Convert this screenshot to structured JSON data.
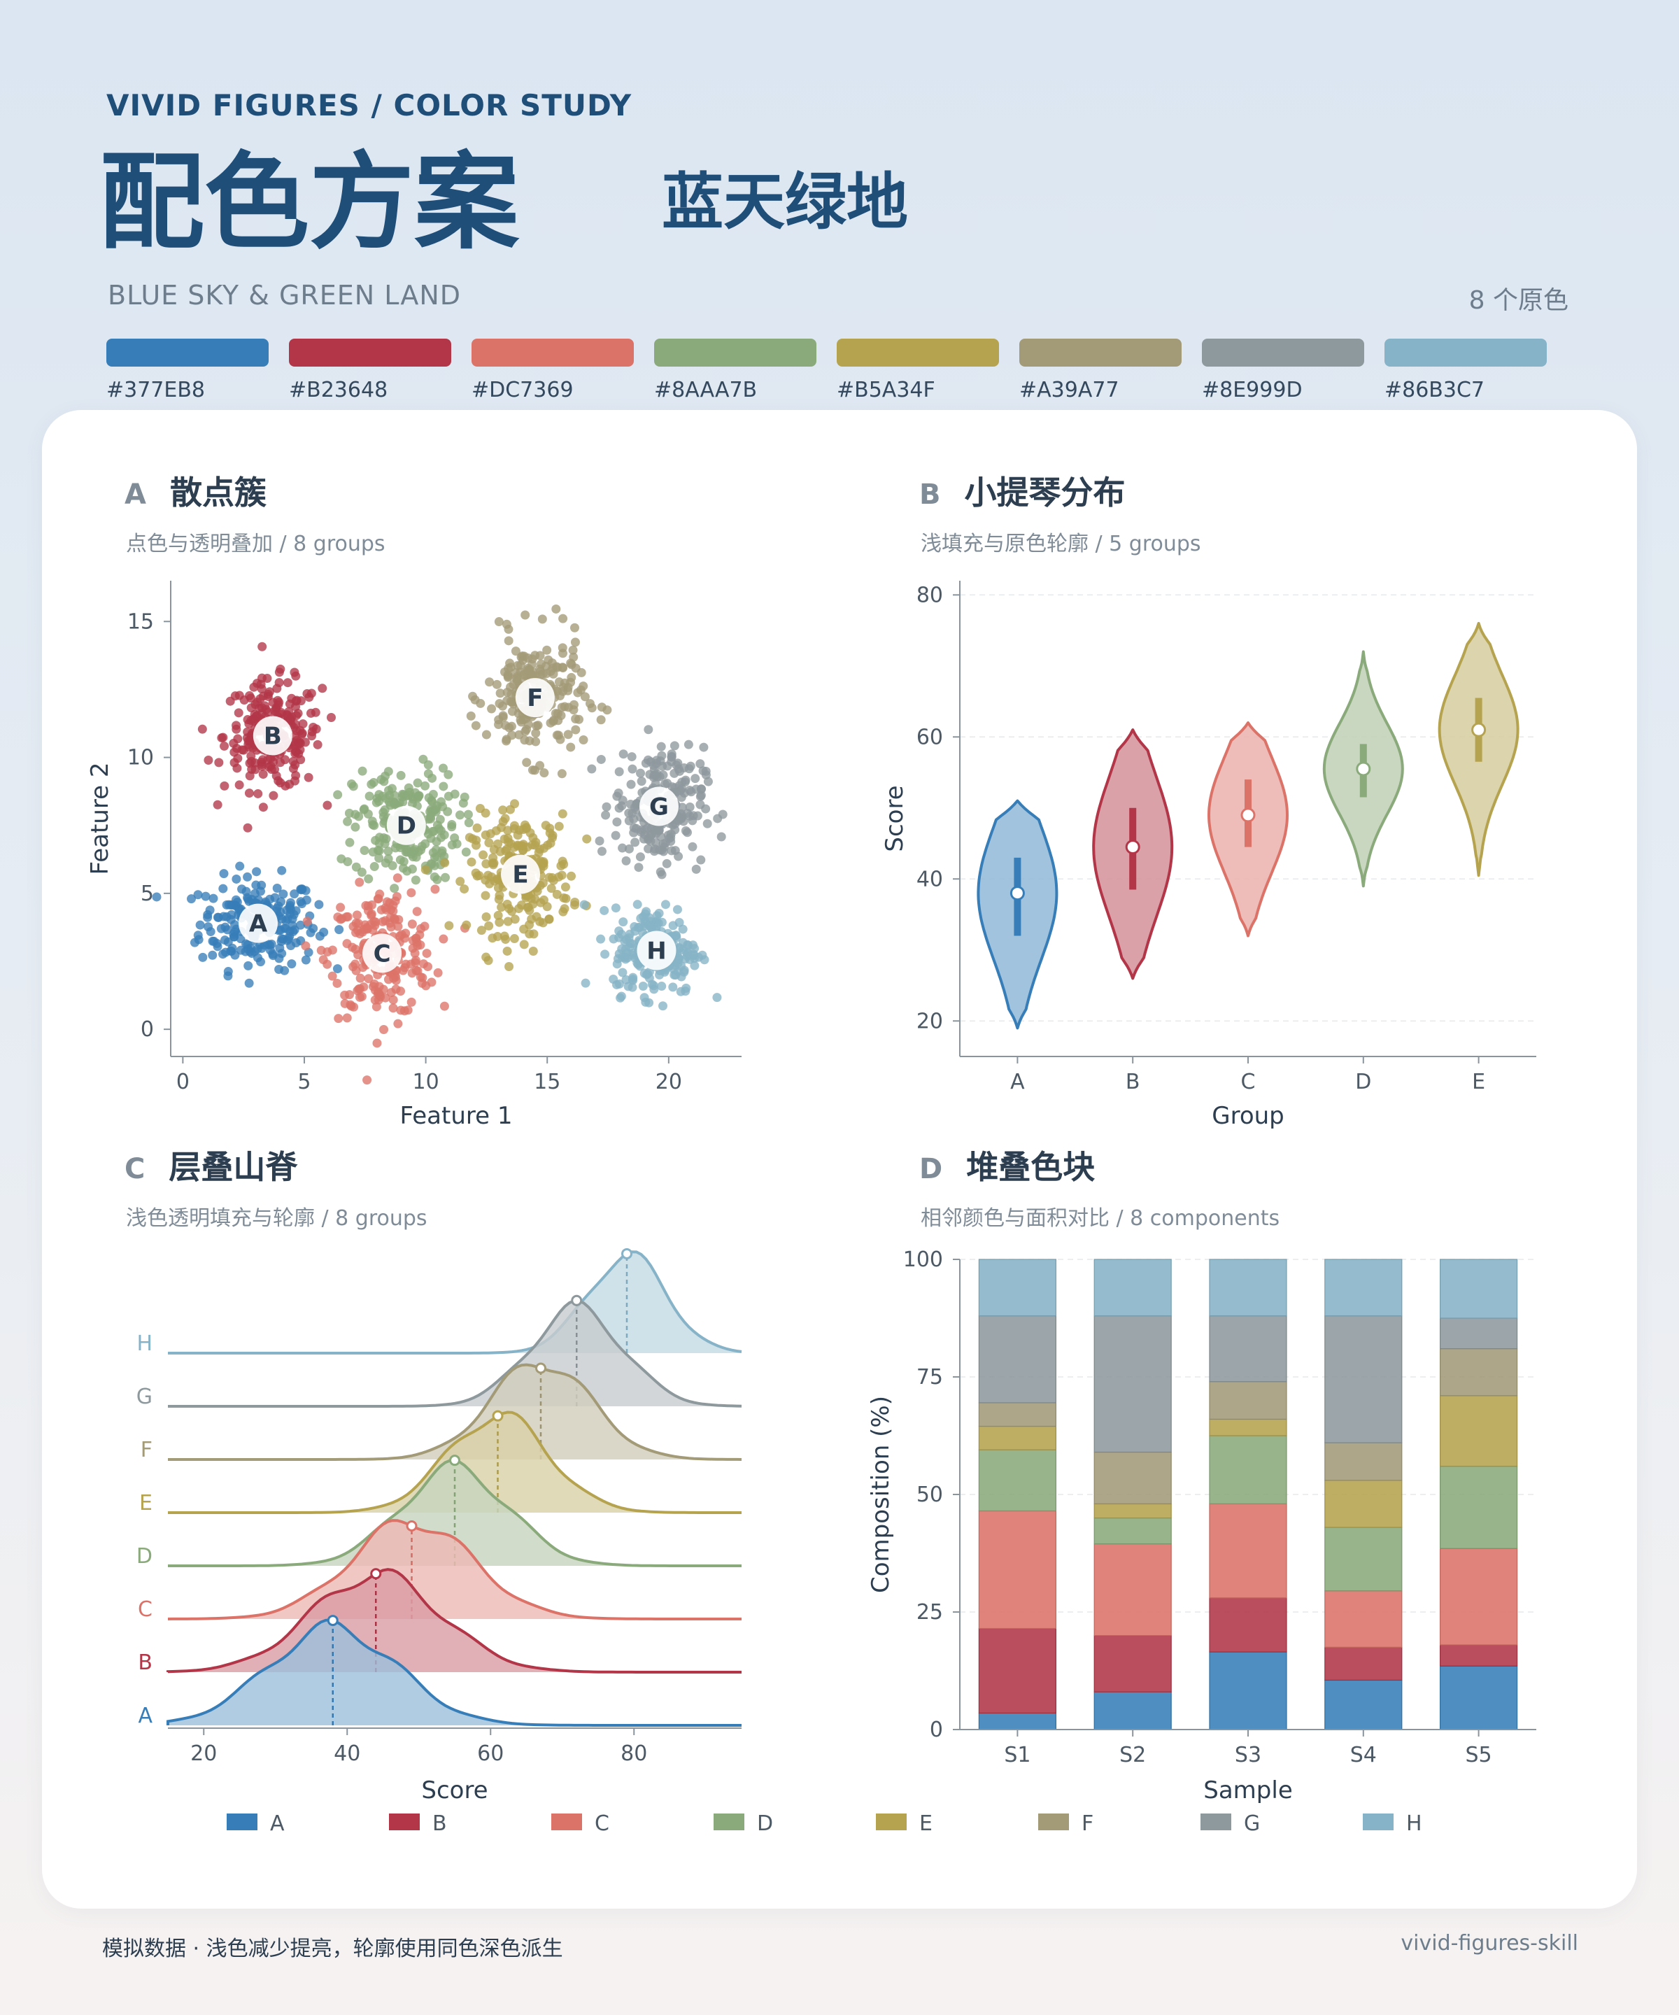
{
  "header": {
    "brand": "VIVID FIGURES  /  COLOR STUDY",
    "title_cn": "配色方案",
    "subtitle_cn": "蓝天绿地",
    "title_en": "BLUE SKY & GREEN LAND",
    "count_label": "8 个原色"
  },
  "palette": [
    {
      "hex": "#377EB8"
    },
    {
      "hex": "#B23648"
    },
    {
      "hex": "#DC7369"
    },
    {
      "hex": "#8AAA7B"
    },
    {
      "hex": "#B5A34F"
    },
    {
      "hex": "#A39A77"
    },
    {
      "hex": "#8E999D"
    },
    {
      "hex": "#86B3C7"
    }
  ],
  "panels": {
    "a": {
      "letter": "A",
      "title": "散点簇",
      "subtitle": "点色与透明叠加 / 8 groups"
    },
    "b": {
      "letter": "B",
      "title": "小提琴分布",
      "subtitle": "浅填充与原色轮廓 / 5 groups"
    },
    "c": {
      "letter": "C",
      "title": "层叠山脊",
      "subtitle": "浅色透明填充与轮廓 / 8 groups"
    },
    "d": {
      "letter": "D",
      "title": "堆叠色块",
      "subtitle": "相邻颜色与面积对比 / 8 components"
    }
  },
  "chart_data": [
    {
      "type": "scatter",
      "xlabel": "Feature 1",
      "ylabel": "Feature 2",
      "xlim": [
        -0.5,
        23
      ],
      "ylim": [
        -1,
        16.5
      ],
      "xticks": [
        0,
        5,
        10,
        15,
        20
      ],
      "yticks": [
        0,
        5,
        10,
        15
      ],
      "clusters": [
        {
          "name": "A",
          "center": [
            3.1,
            3.9
          ],
          "spread": [
            1.5,
            1.05
          ],
          "color": "#377EB8"
        },
        {
          "name": "B",
          "center": [
            3.7,
            10.8
          ],
          "spread": [
            1.25,
            1.25
          ],
          "color": "#B23648"
        },
        {
          "name": "C",
          "center": [
            8.2,
            2.8
          ],
          "spread": [
            1.35,
            1.45
          ],
          "color": "#DC7369"
        },
        {
          "name": "D",
          "center": [
            9.2,
            7.5
          ],
          "spread": [
            1.35,
            1.3
          ],
          "color": "#8AAA7B"
        },
        {
          "name": "E",
          "center": [
            13.9,
            5.7
          ],
          "spread": [
            1.3,
            1.35
          ],
          "color": "#B5A34F"
        },
        {
          "name": "F",
          "center": [
            14.5,
            12.2
          ],
          "spread": [
            1.25,
            1.4
          ],
          "color": "#A39A77"
        },
        {
          "name": "G",
          "center": [
            19.6,
            8.2
          ],
          "spread": [
            1.15,
            1.35
          ],
          "color": "#8E999D"
        },
        {
          "name": "H",
          "center": [
            19.5,
            2.9
          ],
          "spread": [
            1.1,
            1.0
          ],
          "color": "#86B3C7"
        }
      ]
    },
    {
      "type": "violin",
      "xlabel": "Group",
      "ylabel": "Score",
      "ylim": [
        15,
        82
      ],
      "yticks": [
        20,
        40,
        60,
        80
      ],
      "categories": [
        "A",
        "B",
        "C",
        "D",
        "E"
      ],
      "groups": [
        {
          "name": "A",
          "median": 38,
          "q1": 32,
          "q3": 43,
          "min": 19,
          "max": 51,
          "color": "#377EB8"
        },
        {
          "name": "B",
          "median": 44.5,
          "q1": 38.5,
          "q3": 50,
          "min": 26,
          "max": 61,
          "color": "#B23648"
        },
        {
          "name": "C",
          "median": 49,
          "q1": 44.5,
          "q3": 54,
          "min": 32,
          "max": 62,
          "color": "#DC7369"
        },
        {
          "name": "D",
          "median": 55.5,
          "q1": 51.5,
          "q3": 59,
          "min": 39,
          "max": 72,
          "color": "#8AAA7B"
        },
        {
          "name": "E",
          "median": 61,
          "q1": 56.5,
          "q3": 65.5,
          "min": 40.5,
          "max": 76,
          "color": "#B5A34F"
        }
      ]
    },
    {
      "type": "ridgeline",
      "xlabel": "Score",
      "xlim": [
        15,
        95
      ],
      "xticks": [
        20,
        40,
        60,
        80
      ],
      "series": [
        {
          "name": "A",
          "mean": 38,
          "sd": 9,
          "color": "#377EB8"
        },
        {
          "name": "B",
          "mean": 44,
          "sd": 9,
          "color": "#B23648"
        },
        {
          "name": "C",
          "mean": 49,
          "sd": 8.5,
          "color": "#DC7369"
        },
        {
          "name": "D",
          "mean": 55,
          "sd": 7.5,
          "color": "#8AAA7B"
        },
        {
          "name": "E",
          "mean": 61,
          "sd": 7,
          "color": "#B5A34F"
        },
        {
          "name": "F",
          "mean": 67,
          "sd": 7,
          "color": "#A39A77"
        },
        {
          "name": "G",
          "mean": 72,
          "sd": 6.5,
          "color": "#8E999D"
        },
        {
          "name": "H",
          "mean": 79,
          "sd": 5.5,
          "color": "#86B3C7"
        }
      ]
    },
    {
      "type": "bar",
      "stacked": true,
      "xlabel": "Sample",
      "ylabel": "Composition (%)",
      "ylim": [
        0,
        100
      ],
      "yticks": [
        0,
        25,
        50,
        75,
        100
      ],
      "categories": [
        "S1",
        "S2",
        "S3",
        "S4",
        "S5"
      ],
      "series": [
        {
          "name": "A",
          "values": [
            3.5,
            8,
            16.5,
            10.5,
            13.5
          ],
          "color": "#377EB8"
        },
        {
          "name": "B",
          "values": [
            18,
            12,
            11.5,
            7,
            4.5
          ],
          "color": "#B23648"
        },
        {
          "name": "C",
          "values": [
            25,
            19.5,
            20,
            12,
            20.5
          ],
          "color": "#DC7369"
        },
        {
          "name": "D",
          "values": [
            13,
            5.5,
            14.5,
            13.5,
            17.5
          ],
          "color": "#8AAA7B"
        },
        {
          "name": "E",
          "values": [
            5,
            3,
            3.5,
            10,
            15
          ],
          "color": "#B5A34F"
        },
        {
          "name": "F",
          "values": [
            5,
            11,
            8,
            8,
            10
          ],
          "color": "#A39A77"
        },
        {
          "name": "G",
          "values": [
            18.5,
            29,
            14,
            27,
            6.5
          ],
          "color": "#8E999D"
        },
        {
          "name": "H",
          "values": [
            12,
            12,
            12,
            12,
            12.5
          ],
          "color": "#86B3C7"
        }
      ]
    }
  ],
  "legend": [
    "A",
    "B",
    "C",
    "D",
    "E",
    "F",
    "G",
    "H"
  ],
  "footer": {
    "note": "模拟数据 · 浅色减少提亮，轮廓使用同色深色派生",
    "credit": "vivid-figures-skill"
  }
}
